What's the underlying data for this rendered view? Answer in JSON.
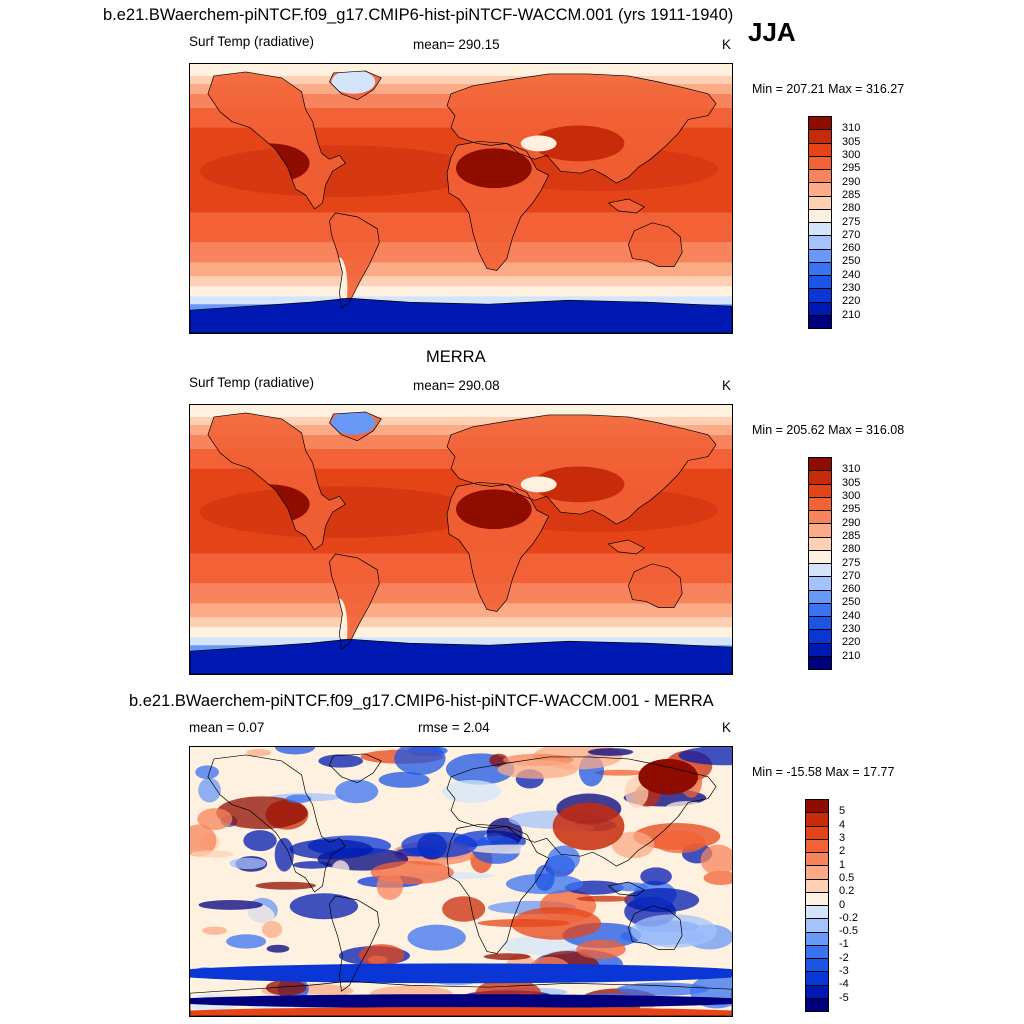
{
  "figure": {
    "season": "JJA",
    "main_title": "b.e21.BWaerchem-piNTCF.f09_g17.CMIP6-hist-piNTCF-WACCM.001 (yrs 1911-1940)"
  },
  "colors": {
    "temp_scale": [
      "#00007f",
      "#0019b2",
      "#0a36d5",
      "#1c55e6",
      "#3a73f2",
      "#6a98f7",
      "#a4c2fb",
      "#d4e5fb",
      "#fff1e0",
      "#fdd0b4",
      "#fbab86",
      "#f7845c",
      "#f26236",
      "#e54418",
      "#c82b0a",
      "#8f0c00"
    ],
    "diff_scale": [
      "#00007f",
      "#0019b2",
      "#0a36d5",
      "#1c55e6",
      "#3a73f2",
      "#6a98f7",
      "#a4c2fb",
      "#d4e5fb",
      "#fff1e0",
      "#fdd0b4",
      "#fbab86",
      "#f7845c",
      "#f26236",
      "#e54418",
      "#c82b0a",
      "#8f0c00"
    ],
    "coastline": "#000000"
  },
  "panels": [
    {
      "id": "model",
      "title": "",
      "variable": "Surf Temp (radiative)",
      "stat": "mean= 290.15",
      "units": "K",
      "minmax": "Min = 207.21 Max = 316.27",
      "colorbar_labels": [
        "310",
        "305",
        "300",
        "295",
        "290",
        "285",
        "280",
        "275",
        "270",
        "260",
        "250",
        "240",
        "230",
        "220",
        "210"
      ],
      "colorbar_colors": "temp_scale"
    },
    {
      "id": "obs",
      "title": "MERRA",
      "variable": "Surf Temp (radiative)",
      "stat": "mean= 290.08",
      "units": "K",
      "minmax": "Min = 205.62 Max = 316.08",
      "colorbar_labels": [
        "310",
        "305",
        "300",
        "295",
        "290",
        "285",
        "280",
        "275",
        "270",
        "260",
        "250",
        "240",
        "230",
        "220",
        "210"
      ],
      "colorbar_colors": "temp_scale"
    },
    {
      "id": "diff",
      "title": "b.e21.BWaerchem-piNTCF.f09_g17.CMIP6-hist-piNTCF-WACCM.001 - MERRA",
      "variable": "mean =   0.07",
      "stat": "rmse =   2.04",
      "units": "K",
      "minmax": "Min = -15.58 Max =  17.77",
      "colorbar_labels": [
        "5",
        "4",
        "3",
        "2",
        "1",
        "0.5",
        "0.2",
        "0",
        "-0.2",
        "-0.5",
        "-1",
        "-2",
        "-3",
        "-4",
        "-5"
      ],
      "colorbar_colors": "diff_scale"
    }
  ]
}
